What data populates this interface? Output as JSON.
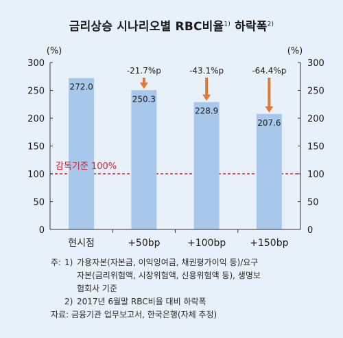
{
  "title": "금리상승 시나리오별 RBC비율",
  "title_sup1": "1)",
  "title_mid": " 하락폭",
  "title_sup2": "2)",
  "chart_data": {
    "type": "bar",
    "categories": [
      "현시점",
      "+50bp",
      "+100bp",
      "+150bp"
    ],
    "values": [
      272.0,
      250.3,
      228.9,
      207.6
    ],
    "value_labels": [
      "272.0",
      "250.3",
      "228.9",
      "207.6"
    ],
    "changes": [
      "",
      "-21.7%p",
      "-43.1%p",
      "-64.4%p"
    ],
    "ylim": [
      0,
      300
    ],
    "yticks": [
      0,
      50,
      100,
      150,
      200,
      250,
      300
    ],
    "left_unit": "(%)",
    "right_unit": "(%)",
    "reference_line": {
      "value": 100,
      "label": "감독기준 100%"
    },
    "grid": false,
    "colors": {
      "bar": "#a7c8ea",
      "arrow": "#e07934",
      "reference": "#d4202e"
    }
  },
  "notes": {
    "lead": "주:",
    "n1_num": "1)",
    "n1_line1": "가용자본(자본금, 이익잉여금, 채권평가이익 등)/요구",
    "n1_line2": "자본(금리위험액, 시장위험액, 신용위험액 등), 생명보",
    "n1_line3": "험회사 기준",
    "n2_num": "2)",
    "n2_text": "2017년 6월말 RBC비율 대비 하락폭",
    "source": "자료: 금융기관 업무보고서, 한국은행(자체 추정)"
  }
}
